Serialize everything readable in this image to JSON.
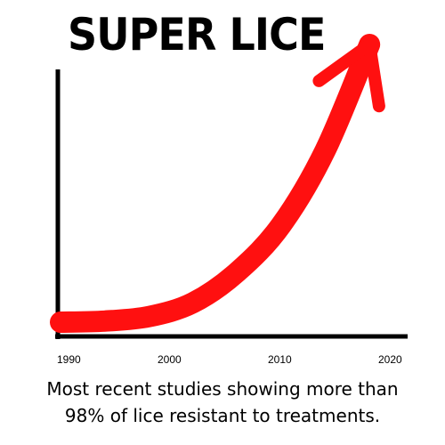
{
  "chart_data": {
    "type": "line",
    "title": "SUPER LICE",
    "caption_lines": [
      "Most recent studies showing more than",
      "98% of lice resistant to treatments."
    ],
    "xlabel": "",
    "ylabel": "",
    "x_ticks": [
      "1990",
      "2000",
      "2010",
      "2020"
    ],
    "xlim": [
      1990,
      2020
    ],
    "series": [
      {
        "x": [
          1990,
          1994,
          1998,
          2002,
          2006,
          2010,
          2014,
          2018
        ],
        "values": [
          0,
          0.4,
          2,
          7,
          18,
          35,
          62,
          100
        ]
      }
    ],
    "grid": false,
    "legend": "none",
    "colors": {
      "arrow": "#ff1010",
      "axis": "#000000",
      "text": "#000000"
    }
  }
}
